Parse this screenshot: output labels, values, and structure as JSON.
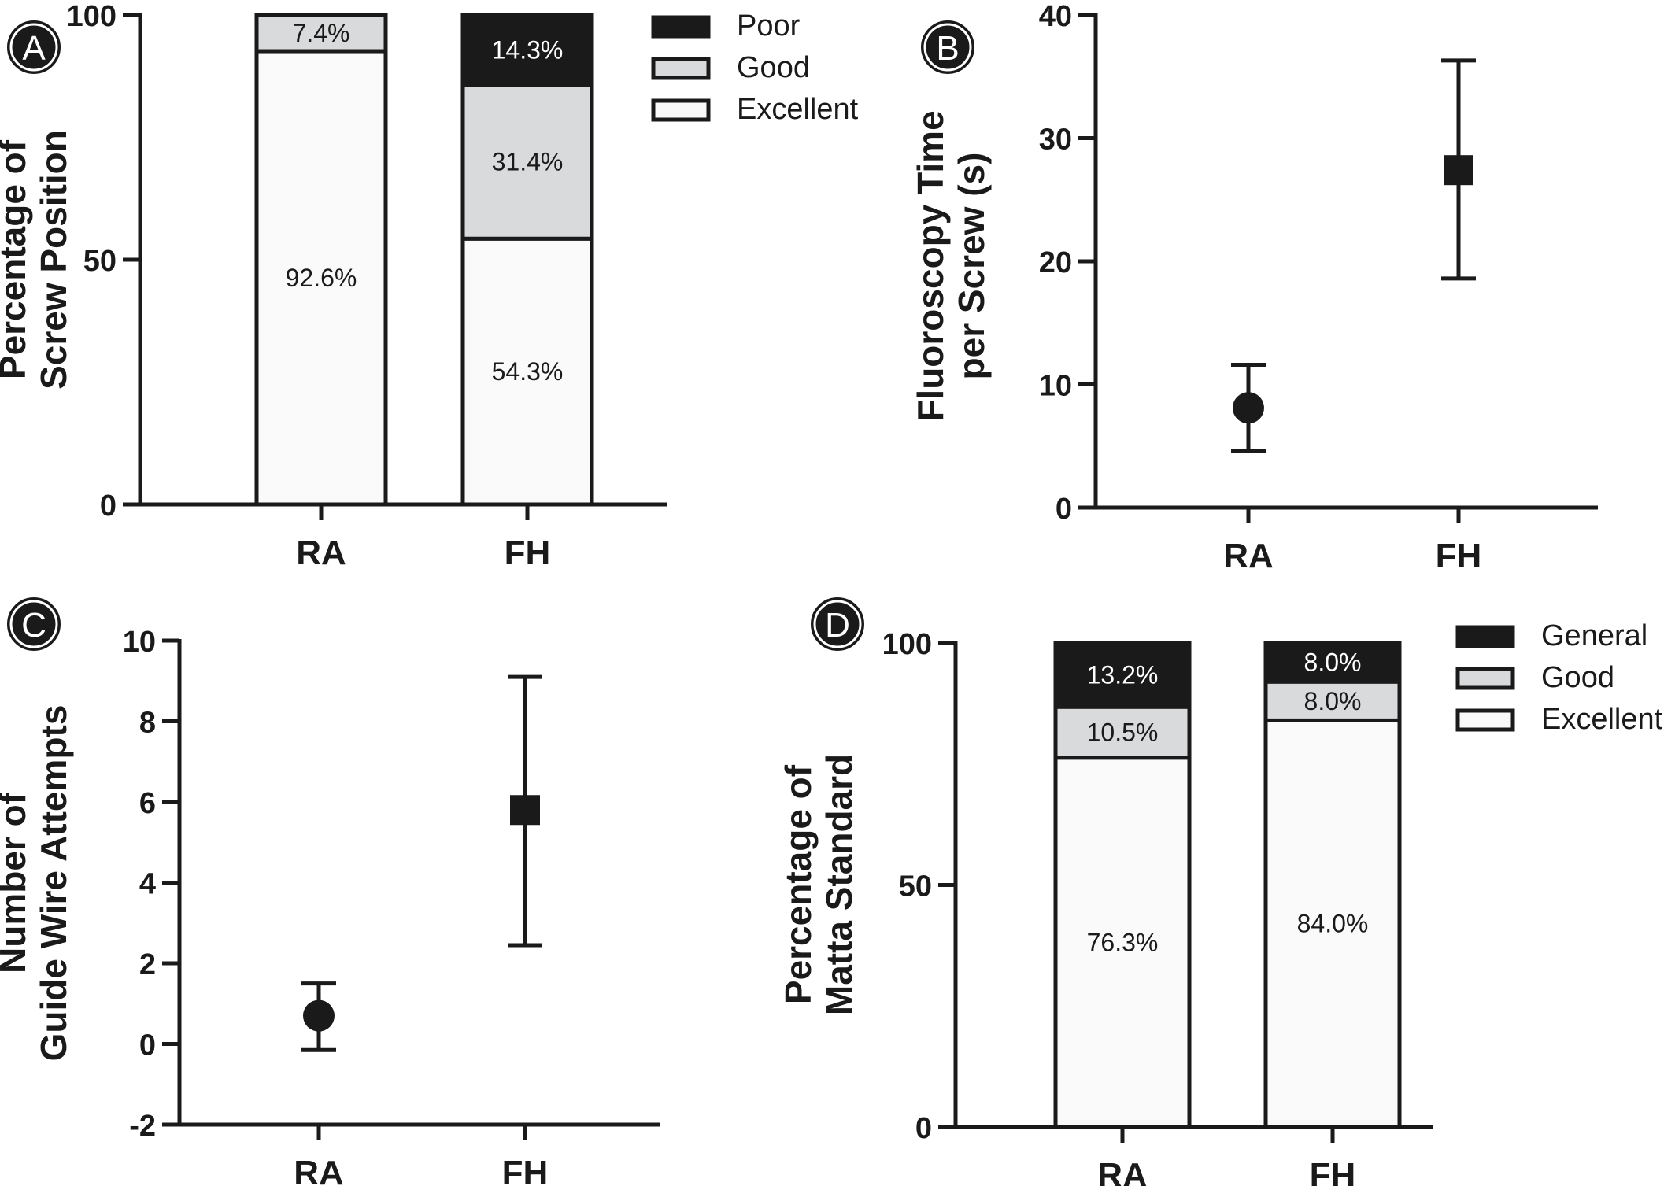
{
  "panels": {
    "A": {
      "badge": "A",
      "chart_data": {
        "type": "bar",
        "stacked": true,
        "categories": [
          "RA",
          "FH"
        ],
        "series": [
          {
            "name": "Excellent",
            "values": [
              92.6,
              54.3
            ],
            "labels": [
              "92.6%",
              "54.3%"
            ],
            "color": "#fafafa"
          },
          {
            "name": "Good",
            "values": [
              7.4,
              31.4
            ],
            "labels": [
              "7.4%",
              "31.4%"
            ],
            "color": "#d9dadb"
          },
          {
            "name": "Poor",
            "values": [
              0,
              14.3
            ],
            "labels": [
              "",
              "14.3%"
            ],
            "color": "#1a1a1a"
          }
        ],
        "legend_order": [
          "Poor",
          "Good",
          "Excellent"
        ],
        "legend_position": "top-right",
        "ylabel_lines": [
          "Percentage of",
          "Screw Position"
        ],
        "yticks": [
          "0",
          "50",
          "100"
        ],
        "ylim": [
          0,
          100
        ]
      }
    },
    "B": {
      "badge": "B",
      "chart_data": {
        "type": "scatter",
        "categories": [
          "RA",
          "FH"
        ],
        "points": [
          {
            "category": "RA",
            "mean": 8.1,
            "err_low": 4.6,
            "err_high": 11.6,
            "marker": "circle"
          },
          {
            "category": "FH",
            "mean": 27.4,
            "err_low": 18.6,
            "err_high": 36.3,
            "marker": "square"
          }
        ],
        "ylabel_lines": [
          "Fluoroscopy Time",
          "per Screw (s)"
        ],
        "yticks": [
          "0",
          "10",
          "20",
          "30",
          "40"
        ],
        "ylim": [
          0,
          40
        ]
      }
    },
    "C": {
      "badge": "C",
      "chart_data": {
        "type": "scatter",
        "categories": [
          "RA",
          "FH"
        ],
        "points": [
          {
            "category": "RA",
            "mean": 0.7,
            "err_low": -0.15,
            "err_high": 1.5,
            "marker": "circle"
          },
          {
            "category": "FH",
            "mean": 5.8,
            "err_low": 2.45,
            "err_high": 9.1,
            "marker": "square"
          }
        ],
        "ylabel_lines": [
          "Number of",
          "Guide Wire Attempts"
        ],
        "yticks": [
          "-2",
          "0",
          "2",
          "4",
          "6",
          "8",
          "10"
        ],
        "ylim": [
          -2,
          10
        ]
      }
    },
    "D": {
      "badge": "D",
      "chart_data": {
        "type": "bar",
        "stacked": true,
        "categories": [
          "RA",
          "FH"
        ],
        "series": [
          {
            "name": "Excellent",
            "values": [
              76.3,
              84.0
            ],
            "labels": [
              "76.3%",
              "84.0%"
            ],
            "color": "#fafafa"
          },
          {
            "name": "Good",
            "values": [
              10.5,
              8.0
            ],
            "labels": [
              "10.5%",
              "8.0%"
            ],
            "color": "#d9dadb"
          },
          {
            "name": "General",
            "values": [
              13.2,
              8.0
            ],
            "labels": [
              "13.2%",
              "8.0%"
            ],
            "color": "#1a1a1a"
          }
        ],
        "legend_order": [
          "General",
          "Good",
          "Excellent"
        ],
        "legend_position": "top-right",
        "ylabel_lines": [
          "Percentage of",
          "Matta Standard"
        ],
        "yticks": [
          "0",
          "50",
          "100"
        ],
        "ylim": [
          0,
          100
        ]
      }
    }
  }
}
